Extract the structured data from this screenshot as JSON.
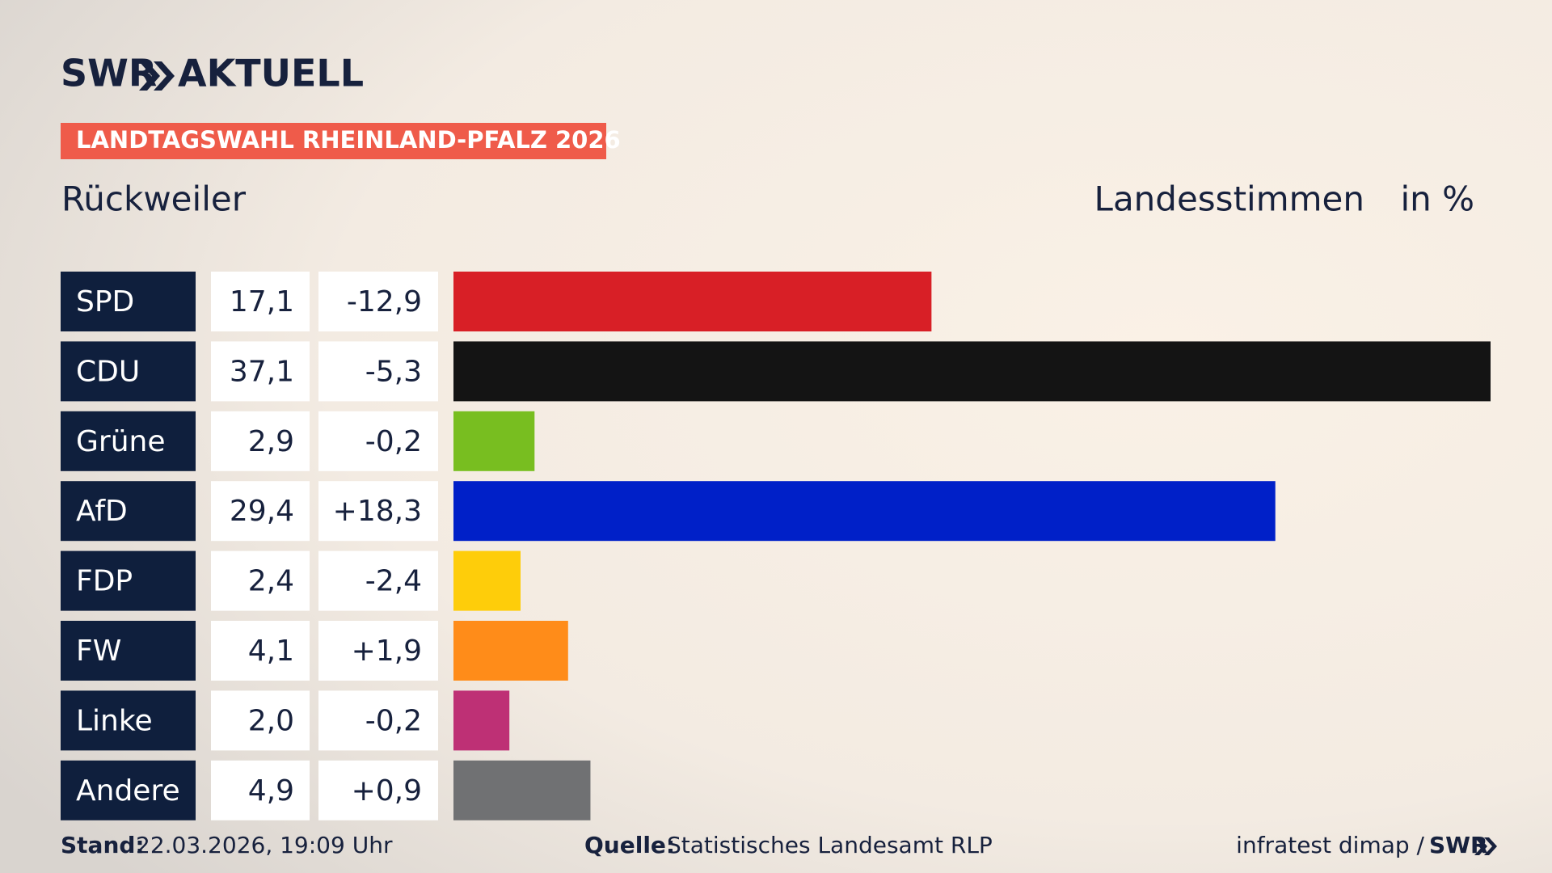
{
  "chart_data": {
    "type": "bar",
    "brand": "SWR",
    "brand_section": "AKTUELL",
    "title": "LANDTAGSWAHL RHEINLAND-PFALZ 2026",
    "subtitle": "Rückweiler",
    "measure": "Landesstimmen",
    "unit": "in %",
    "categories": [
      "SPD",
      "CDU",
      "Grüne",
      "AfD",
      "FDP",
      "FW",
      "Linke",
      "Andere"
    ],
    "values": [
      17.1,
      37.1,
      2.9,
      29.4,
      2.4,
      4.1,
      2.0,
      4.9
    ],
    "value_labels": [
      "17,1",
      "37,1",
      "2,9",
      "29,4",
      "2,4",
      "4,1",
      "2,0",
      "4,9"
    ],
    "changes": [
      "-12,9",
      "-5,3",
      "-0,2",
      "+18,3",
      "-2,4",
      "+1,9",
      "-0,2",
      "+0,9"
    ],
    "colors": [
      "#d81f26",
      "#141414",
      "#78be20",
      "#0020c8",
      "#fecd0a",
      "#ff8c19",
      "#be3075",
      "#707173"
    ],
    "footer": {
      "stand_label": "Stand:",
      "stand": "22.03.2026, 19:09 Uhr",
      "source_label": "Quelle:",
      "source": "Statistisches Landesamt RLP",
      "institute": "infratest dimap /",
      "brand": "SWR"
    }
  }
}
